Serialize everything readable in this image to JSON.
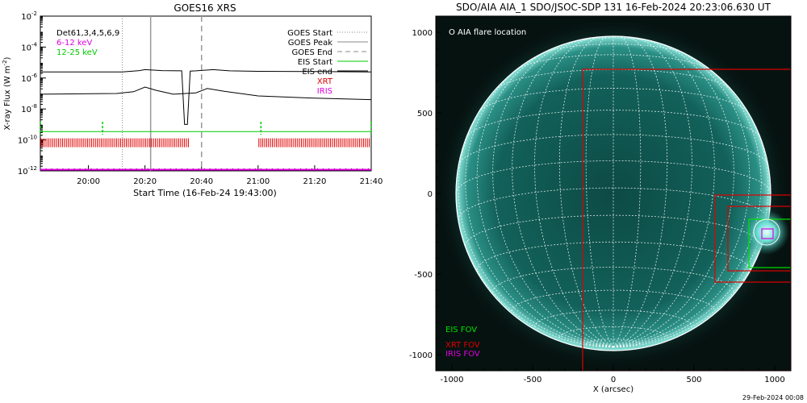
{
  "footer_timestamp": "29-Feb-2024 00:08",
  "chart_data": [
    {
      "type": "line",
      "title": "GOES16 XRS",
      "xlabel": "Start Time (16-Feb-24 19:43:00)",
      "ylabel": "X-ray Flux (W m",
      "ylabel_sup": "-2",
      "ylabel_close": ")",
      "y_scale": "log",
      "ylim": [
        1e-12,
        0.01
      ],
      "xlim": [
        "19:43",
        "21:40"
      ],
      "x_ticks": [
        "20:00",
        "20:20",
        "20:40",
        "21:00",
        "21:20",
        "21:40"
      ],
      "y_ticks": [
        {
          "value": 1e-12,
          "base": "10",
          "exp": "-12"
        },
        {
          "value": 1e-10,
          "base": "10",
          "exp": "-10"
        },
        {
          "value": 1e-08,
          "base": "10",
          "exp": "-8"
        },
        {
          "value": 1e-06,
          "base": "10",
          "exp": "-6"
        },
        {
          "value": 0.0001,
          "base": "10",
          "exp": "-4"
        },
        {
          "value": 0.01,
          "base": "10",
          "exp": "-2"
        }
      ],
      "top_left_labels": [
        {
          "text": "Det61,3,4,5,6,9",
          "color": "#000000"
        },
        {
          "text": "6-12 keV",
          "color": "#e000e0"
        },
        {
          "text": "12-25 keV",
          "color": "#00c800"
        }
      ],
      "legend": [
        {
          "text": "GOES Start",
          "style": "dotted",
          "color": "#888888"
        },
        {
          "text": "GOES Peak",
          "style": "solid",
          "color": "#888888"
        },
        {
          "text": "GOES End",
          "style": "dashed",
          "color": "#888888"
        },
        {
          "text": "EIS Start",
          "style": "solid",
          "color": "#00c800"
        },
        {
          "text": "EIS end",
          "style": "solid",
          "color": "#000000"
        },
        {
          "text": "XRT",
          "style": "none",
          "color": "#e00000"
        },
        {
          "text": "IRIS",
          "style": "none",
          "color": "#e000e0"
        }
      ],
      "legend_placement": "top-right",
      "markers": {
        "goes_start": "20:12",
        "goes_peak": "20:22",
        "goes_end": "20:40"
      },
      "series": [
        {
          "color": "#000000",
          "x": [
            "19:43",
            "20:12",
            "20:18",
            "20:20",
            "20:26",
            "20:33",
            "20:34",
            "20:35",
            "20:36",
            "20:38",
            "20:44",
            "20:50",
            "21:00",
            "21:20",
            "21:40"
          ],
          "y": [
            2.5e-06,
            2.5e-06,
            3e-06,
            3.5e-06,
            3e-06,
            2.9e-06,
            1e-09,
            1e-09,
            2.8e-06,
            2.9e-06,
            3.5e-06,
            2.9e-06,
            2.7e-06,
            2.6e-06,
            2.5e-06
          ]
        },
        {
          "color": "#000000",
          "x": [
            "19:43",
            "20:10",
            "20:16",
            "20:20",
            "20:24",
            "20:30",
            "20:38",
            "20:42",
            "20:48",
            "21:00",
            "21:20",
            "21:40"
          ],
          "y": [
            9e-08,
            1e-07,
            1.3e-07,
            2.6e-07,
            1.6e-07,
            9e-08,
            1.1e-07,
            2.1e-07,
            1.4e-07,
            7e-08,
            5e-08,
            4e-08
          ]
        },
        {
          "color": "#00c800",
          "x": [
            "19:43",
            "21:40"
          ],
          "y": [
            3.5e-10,
            3.5e-10
          ]
        },
        {
          "color": "#e000e0",
          "x": [
            "19:43",
            "21:40"
          ],
          "y": [
            1.2e-12,
            1.2e-12
          ]
        }
      ],
      "eis_start_marks": [
        "19:43",
        "20:05",
        "21:01",
        "21:40"
      ],
      "xrt_ranges": [
        [
          "19:43",
          "20:36"
        ],
        [
          "21:00",
          "21:40"
        ]
      ],
      "xrt_level": 1e-10
    },
    {
      "type": "image",
      "title": "SDO/AIA AIA_1 SDO/JSOC-SDP 131 16-Feb-2024 20:23:06.630 UT",
      "xlabel": "X (arcsec)",
      "xlim": [
        -1100,
        1100
      ],
      "ylim": [
        -1100,
        1100
      ],
      "x_ticks": [
        -1000,
        -500,
        0,
        500,
        1000
      ],
      "y_ticks": [
        -1000,
        -500,
        0,
        500,
        1000
      ],
      "annotation": "O AIA flare location",
      "fov_legend": [
        {
          "text": "EIS FOV",
          "color": "#00e000"
        },
        {
          "text": "XRT FOV",
          "color": "#e00000"
        },
        {
          "text": "IRIS FOV",
          "color": "#e000e0"
        }
      ],
      "fov_boxes": [
        {
          "name": "xrt-large",
          "color": "#e00000",
          "x": [
            -190,
            1100
          ],
          "y": [
            -1100,
            770
          ]
        },
        {
          "name": "xrt-medium",
          "color": "#e00000",
          "x": [
            630,
            1100
          ],
          "y": [
            -550,
            -10
          ]
        },
        {
          "name": "xrt-small",
          "color": "#e00000",
          "x": [
            710,
            1100
          ],
          "y": [
            -480,
            -80
          ]
        },
        {
          "name": "eis",
          "color": "#00e000",
          "x": [
            840,
            1130
          ],
          "y": [
            -460,
            -160
          ]
        },
        {
          "name": "iris",
          "color": "#e000e0",
          "x": [
            920,
            990
          ],
          "y": [
            -280,
            -220
          ]
        }
      ],
      "flare_location": [
        950,
        -240
      ]
    }
  ]
}
